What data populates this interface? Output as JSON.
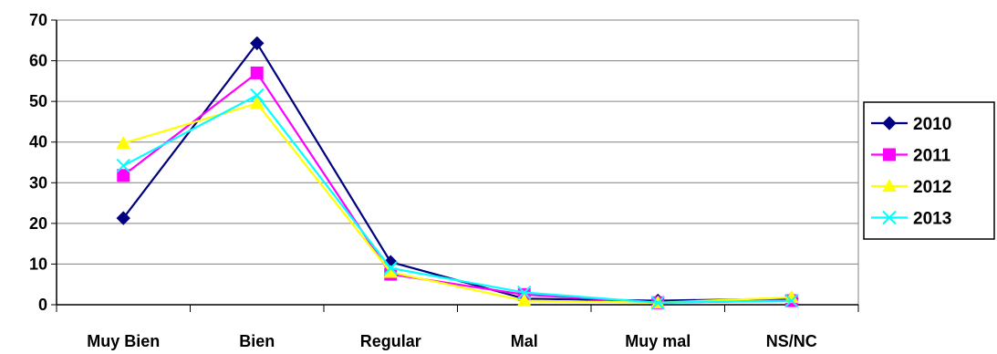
{
  "chart_data": {
    "type": "line",
    "title": "",
    "xlabel": "",
    "ylabel": "",
    "categories": [
      "Muy Bien",
      "Bien",
      "Regular",
      "Mal",
      "Muy mal",
      "NS/NC"
    ],
    "ylim": [
      0,
      70
    ],
    "yticks": [
      0,
      10,
      20,
      30,
      40,
      50,
      60,
      70
    ],
    "grid": "horizontal",
    "legend_position": "right",
    "series": [
      {
        "name": "2010",
        "color": "#000080",
        "marker": "diamond",
        "values": [
          21.3,
          64.3,
          10.5,
          1.5,
          1.0,
          1.5
        ]
      },
      {
        "name": "2011",
        "color": "#FF00FF",
        "marker": "square",
        "values": [
          31.8,
          57.0,
          7.5,
          2.5,
          0.5,
          1.0
        ]
      },
      {
        "name": "2012",
        "color": "#FFFF00",
        "marker": "triangle",
        "values": [
          39.7,
          49.5,
          8.0,
          1.0,
          0.5,
          1.8
        ]
      },
      {
        "name": "2013",
        "color": "#00FFFF",
        "marker": "x",
        "values": [
          34.2,
          51.5,
          9.0,
          3.0,
          0.5,
          1.0
        ]
      }
    ]
  }
}
